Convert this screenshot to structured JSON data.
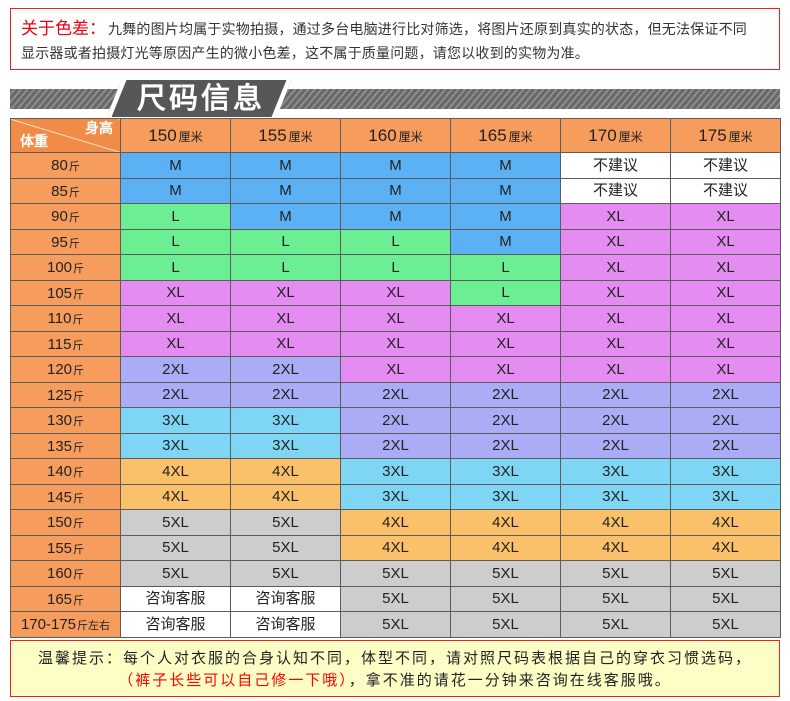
{
  "notice": {
    "title": "关于色差：",
    "lines": [
      "九舞的图片均属于实物拍摄，通过多台电脑进行比对筛选，将图片还原到真实的状态，但无法保证不同",
      "显示器或者拍摄灯光等原因产生的微小色差，这不属于质量问题，请您以收到的实物为准。"
    ]
  },
  "section_title": "尺码信息",
  "table": {
    "corner": {
      "height_label": "身高",
      "weight_label": "体重"
    },
    "columns": [
      {
        "value": "150",
        "unit": "厘米"
      },
      {
        "value": "155",
        "unit": "厘米"
      },
      {
        "value": "160",
        "unit": "厘米"
      },
      {
        "value": "165",
        "unit": "厘米"
      },
      {
        "value": "170",
        "unit": "厘米"
      },
      {
        "value": "175",
        "unit": "厘米"
      }
    ],
    "rows": [
      {
        "weight": "80",
        "unit": "斤",
        "sizes": [
          "M",
          "M",
          "M",
          "M",
          "不建议",
          "不建议"
        ]
      },
      {
        "weight": "85",
        "unit": "斤",
        "sizes": [
          "M",
          "M",
          "M",
          "M",
          "不建议",
          "不建议"
        ]
      },
      {
        "weight": "90",
        "unit": "斤",
        "sizes": [
          "L",
          "M",
          "M",
          "M",
          "XL",
          "XL"
        ]
      },
      {
        "weight": "95",
        "unit": "斤",
        "sizes": [
          "L",
          "L",
          "L",
          "M",
          "XL",
          "XL"
        ]
      },
      {
        "weight": "100",
        "unit": "斤",
        "sizes": [
          "L",
          "L",
          "L",
          "L",
          "XL",
          "XL"
        ]
      },
      {
        "weight": "105",
        "unit": "斤",
        "sizes": [
          "XL",
          "XL",
          "XL",
          "L",
          "XL",
          "XL"
        ]
      },
      {
        "weight": "110",
        "unit": "斤",
        "sizes": [
          "XL",
          "XL",
          "XL",
          "XL",
          "XL",
          "XL"
        ]
      },
      {
        "weight": "115",
        "unit": "斤",
        "sizes": [
          "XL",
          "XL",
          "XL",
          "XL",
          "XL",
          "XL"
        ]
      },
      {
        "weight": "120",
        "unit": "斤",
        "sizes": [
          "2XL",
          "2XL",
          "XL",
          "XL",
          "XL",
          "XL"
        ]
      },
      {
        "weight": "125",
        "unit": "斤",
        "sizes": [
          "2XL",
          "2XL",
          "2XL",
          "2XL",
          "2XL",
          "2XL"
        ]
      },
      {
        "weight": "130",
        "unit": "斤",
        "sizes": [
          "3XL",
          "3XL",
          "2XL",
          "2XL",
          "2XL",
          "2XL"
        ]
      },
      {
        "weight": "135",
        "unit": "斤",
        "sizes": [
          "3XL",
          "3XL",
          "2XL",
          "2XL",
          "2XL",
          "2XL"
        ]
      },
      {
        "weight": "140",
        "unit": "斤",
        "sizes": [
          "4XL",
          "4XL",
          "3XL",
          "3XL",
          "3XL",
          "3XL"
        ]
      },
      {
        "weight": "145",
        "unit": "斤",
        "sizes": [
          "4XL",
          "4XL",
          "3XL",
          "3XL",
          "3XL",
          "3XL"
        ]
      },
      {
        "weight": "150",
        "unit": "斤",
        "sizes": [
          "5XL",
          "5XL",
          "4XL",
          "4XL",
          "4XL",
          "4XL"
        ]
      },
      {
        "weight": "155",
        "unit": "斤",
        "sizes": [
          "5XL",
          "5XL",
          "4XL",
          "4XL",
          "4XL",
          "4XL"
        ]
      },
      {
        "weight": "160",
        "unit": "斤",
        "sizes": [
          "5XL",
          "5XL",
          "5XL",
          "5XL",
          "5XL",
          "5XL"
        ]
      },
      {
        "weight": "165",
        "unit": "斤",
        "sizes": [
          "咨询客服",
          "咨询客服",
          "5XL",
          "5XL",
          "5XL",
          "5XL"
        ]
      },
      {
        "weight": "170-175",
        "unit": "斤左右",
        "sizes": [
          "咨询客服",
          "咨询客服",
          "5XL",
          "5XL",
          "5XL",
          "5XL"
        ]
      }
    ]
  },
  "colors": {
    "header": "#f69c5c",
    "corner": "#f08c48",
    "sizes": {
      "M": "#5cb0f4",
      "L": "#6cee92",
      "XL": "#e48cf2",
      "2XL": "#aaadf6",
      "3XL": "#7ed6f4",
      "4XL": "#fbc16a",
      "5XL": "#cdcdcd",
      "不建议": "#ffffff",
      "咨询客服": "#ffffff"
    }
  },
  "tip": {
    "label": "温馨提示：",
    "line1": "每个人对衣服的合身认知不同，体型不同，请对照尺码表根据自己的穿衣习惯选码，",
    "highlight": "（裤子长些可以自己修一下哦）",
    "line2": "，拿不准的请花一分钟来咨询在线客服哦。"
  }
}
